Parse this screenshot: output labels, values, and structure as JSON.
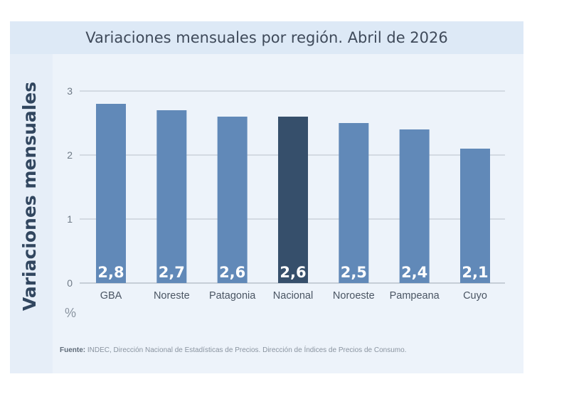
{
  "chart_data": {
    "type": "bar",
    "title": "Variaciones mensuales por región. Abril de 2026",
    "ylabel": "Variaciones mensuales",
    "xlabel": "",
    "unit": "%",
    "categories": [
      "GBA",
      "Noreste",
      "Patagonia",
      "Nacional",
      "Noroeste",
      "Pampeana",
      "Cuyo"
    ],
    "values": [
      2.8,
      2.7,
      2.6,
      2.6,
      2.5,
      2.4,
      2.1
    ],
    "value_labels": [
      "2,8",
      "2,7",
      "2,6",
      "2,6",
      "2,5",
      "2,4",
      "2,1"
    ],
    "highlight_category": "Nacional",
    "ylim": [
      0,
      3
    ],
    "yticks": [
      0,
      1,
      2,
      3
    ],
    "ytick_labels": [
      "0",
      "1",
      "2",
      "3"
    ],
    "grid": true,
    "legend": "none",
    "colors": {
      "bar": "#6189b8",
      "highlight": "#364f6b",
      "panel": "#edf3fa",
      "header": "#dde9f6",
      "grid": "#b9c1cb"
    }
  },
  "source": {
    "label": "Fuente:",
    "text": " INDEC, Dirección Nacional de Estadísticas de Precios. Dirección de Índices de Precios de Consumo."
  }
}
